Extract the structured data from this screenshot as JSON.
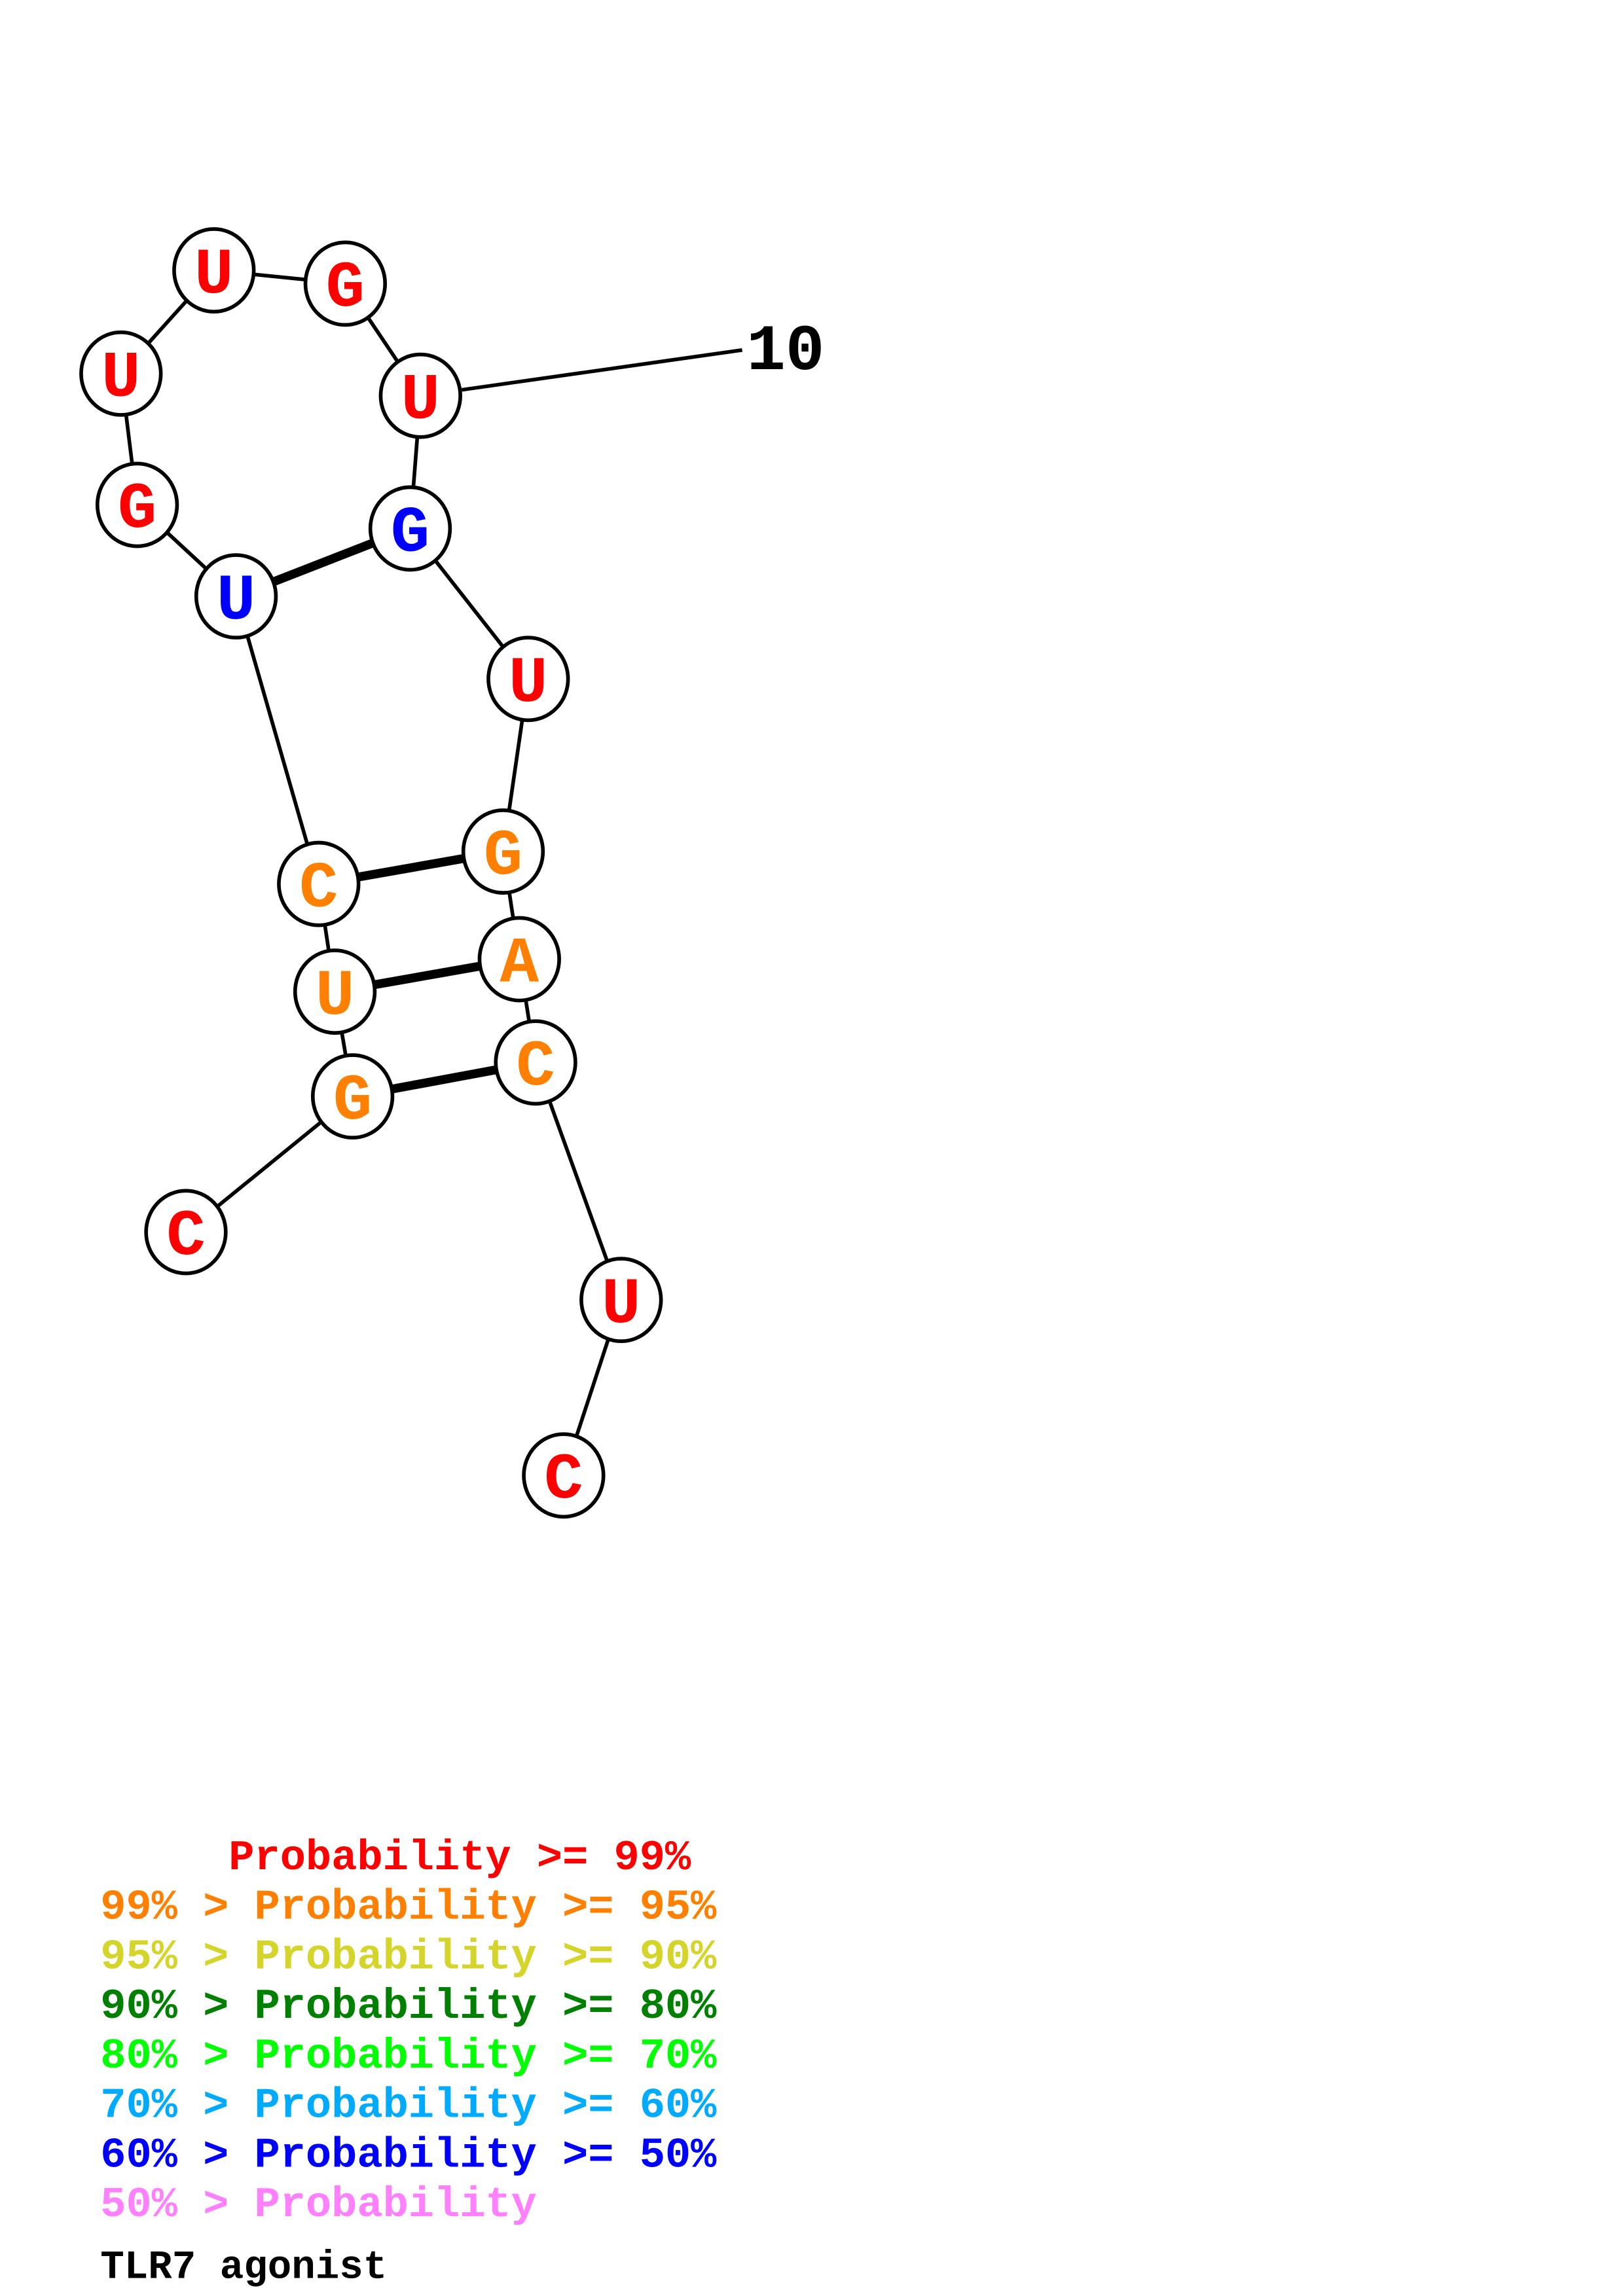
{
  "structure": {
    "sequence": [
      "C",
      "G",
      "U",
      "C",
      "U",
      "G",
      "U",
      "U",
      "G",
      "U",
      "G",
      "U",
      "G",
      "A",
      "C",
      "U",
      "C"
    ],
    "probability_class": [
      "p99",
      "p95",
      "p95",
      "p95",
      "p50",
      "p99",
      "p99",
      "p99",
      "p99",
      "p99",
      "p50",
      "p99",
      "p95",
      "p95",
      "p95",
      "p99",
      "p99"
    ],
    "pairs": [
      [
        2,
        15
      ],
      [
        3,
        14
      ],
      [
        4,
        13
      ],
      [
        5,
        11
      ]
    ],
    "position_labels": [
      {
        "index": 10,
        "text": "10"
      }
    ]
  },
  "colors": {
    "p99": "#ff0000",
    "p95": "#ff8000",
    "p90": "#d4d42a",
    "p80": "#008000",
    "p70": "#00ff00",
    "p60": "#00aaff",
    "p50": "#0000ff",
    "plow": "#ff80ff",
    "outline": "#000000"
  },
  "legend": [
    {
      "text": "     Probability >= 99%",
      "class": "p99"
    },
    {
      "text": "99% > Probability >= 95%",
      "class": "p95"
    },
    {
      "text": "95% > Probability >= 90%",
      "class": "p90"
    },
    {
      "text": "90% > Probability >= 80%",
      "class": "p80"
    },
    {
      "text": "80% > Probability >= 70%",
      "class": "p70"
    },
    {
      "text": "70% > Probability >= 60%",
      "class": "p60"
    },
    {
      "text": "60% > Probability >= 50%",
      "class": "p50"
    },
    {
      "text": "50% > Probability",
      "class": "plow"
    }
  ],
  "title": "TLR7 agonist"
}
